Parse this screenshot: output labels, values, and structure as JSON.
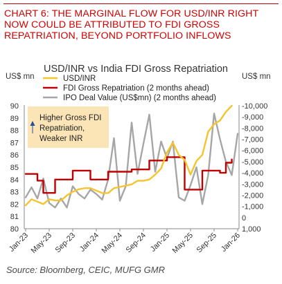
{
  "header": {
    "title_lines": [
      "CHART 6: THE MARGINAL FLOW FOR USD/INR RIGHT",
      "NOW COULD BE ATTRIBUTED TO FDI GROSS",
      "REPATRIATION, BEYOND PORTFOLIO INFLOWS"
    ]
  },
  "source": "Source: Bloomberg, CEIC, MUFG GMR",
  "colors": {
    "title": "#d00000",
    "usdinr": "#f5c42c",
    "fdi": "#c00000",
    "ipo": "#a6a6a6",
    "annotation_bg": "#fbe5b6"
  },
  "chart_data": {
    "type": "line",
    "title": "USD/INR vs India FDI Gross Repatriation",
    "left_unit": "US$ mn",
    "right_unit": "US$ mn",
    "annotation_lines": [
      "Higher Gross FDI",
      "Repatriation,",
      "Weaker INR"
    ],
    "annotation_arrow": "up",
    "legend_placement": "top",
    "grid": false,
    "left_axis": {
      "min": 80,
      "max": 90,
      "ticks": [
        "80",
        "81",
        "82",
        "83",
        "84",
        "85",
        "86",
        "87",
        "88",
        "89",
        "90"
      ]
    },
    "right_axis": {
      "min": 1000,
      "max": -10000,
      "inverted": true,
      "ticks": [
        "1,000",
        "0",
        "-1,000",
        "-2,000",
        "-3,000",
        "-4,000",
        "-5,000",
        "-6,000",
        "-7,000",
        "-8,000",
        "-9,000",
        "-10,000"
      ]
    },
    "x_tick_labels": [
      "Jan-23",
      "May-23",
      "Sep-23",
      "Jan-24",
      "May-24",
      "Sep-24",
      "Jan-25",
      "May-25",
      "Sep-25",
      "Jan-26"
    ],
    "x": [
      "2023-01",
      "2023-02",
      "2023-03",
      "2023-04",
      "2023-05",
      "2023-06",
      "2023-07",
      "2023-08",
      "2023-09",
      "2023-10",
      "2023-11",
      "2023-12",
      "2024-01",
      "2024-02",
      "2024-03",
      "2024-04",
      "2024-05",
      "2024-06",
      "2024-07",
      "2024-08",
      "2024-09",
      "2024-10",
      "2024-11",
      "2024-12",
      "2025-01",
      "2025-02",
      "2025-03",
      "2025-04",
      "2025-05",
      "2025-06",
      "2025-07",
      "2025-08",
      "2025-09",
      "2025-10",
      "2025-11",
      "2025-12",
      "2026-01"
    ],
    "series": [
      {
        "name": "USD/INR",
        "axis": "left",
        "values": [
          81.9,
          82.4,
          82.2,
          82.0,
          82.4,
          82.3,
          82.3,
          82.7,
          83.0,
          83.2,
          83.3,
          83.3,
          83.1,
          82.9,
          82.9,
          83.3,
          83.4,
          83.5,
          83.6,
          83.9,
          83.9,
          84.0,
          84.4,
          84.9,
          86.2,
          87.0,
          86.0,
          85.6,
          84.4,
          85.5,
          86.0,
          87.9,
          88.5,
          88.8,
          89.5,
          90.0,
          null
        ]
      },
      {
        "name": "FDI Gross Repatriation (2 months ahead)",
        "axis": "right",
        "values": [
          -3900,
          -3900,
          -3300,
          -2200,
          -2200,
          -3400,
          -3400,
          -3400,
          -4200,
          -4200,
          -4200,
          -3400,
          -3400,
          -3400,
          -4100,
          -4100,
          -4100,
          -4100,
          -4300,
          -4300,
          -4300,
          -5100,
          -5100,
          -5100,
          -5400,
          -5400,
          -5400,
          -2500,
          -2500,
          -2500,
          -4200,
          -4200,
          -4200,
          -4000,
          -4900,
          -5200,
          null
        ]
      },
      {
        "name": "IPO Deal Value (US$mn) (2 months ahead)",
        "axis": "right",
        "values": [
          -1800,
          -2700,
          -1700,
          -3500,
          -1300,
          -900,
          -1700,
          -900,
          -2800,
          -2100,
          -1700,
          -2500,
          -2100,
          -1600,
          -3400,
          -7100,
          -1500,
          -2800,
          -8500,
          -3900,
          -6600,
          -9200,
          -4100,
          -6800,
          -5300,
          -6800,
          -1800,
          -1500,
          -2900,
          -4500,
          -1200,
          -3800,
          -9300,
          -7000,
          -5000,
          -3800,
          -7500
        ]
      }
    ]
  }
}
